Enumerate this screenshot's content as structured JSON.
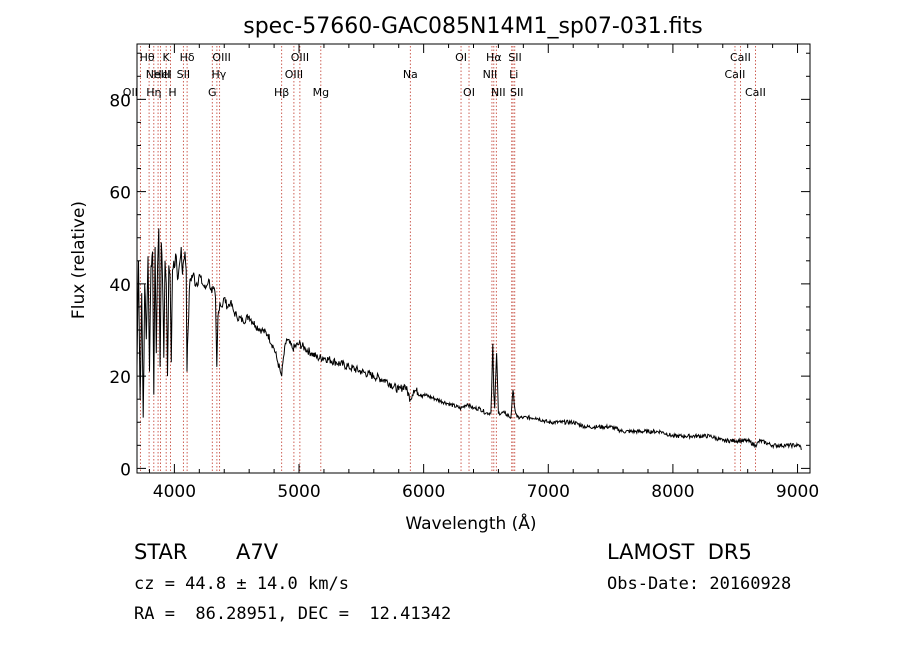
{
  "chart_data": {
    "type": "line",
    "title": "spec-57660-GAC085N14M1_sp07-031.fits",
    "xlabel": "Wavelength (Å)",
    "ylabel": "Flux (relative)",
    "xlim": [
      3700,
      9100
    ],
    "ylim": [
      -1,
      92
    ],
    "xticks": [
      4000,
      5000,
      6000,
      7000,
      8000,
      9000
    ],
    "yticks": [
      0,
      20,
      40,
      60,
      80
    ],
    "grid": false,
    "series": [
      {
        "color": "#000000",
        "x": [
          3700,
          3712,
          3725,
          3738,
          3750,
          3762,
          3775,
          3788,
          3800,
          3812,
          3825,
          3835,
          3845,
          3855,
          3865,
          3875,
          3885,
          3895,
          3905,
          3915,
          3925,
          3935,
          3945,
          3955,
          3965,
          3975,
          3985,
          3995,
          4005,
          4015,
          4025,
          4035,
          4045,
          4055,
          4065,
          4075,
          4085,
          4095,
          4101,
          4110,
          4125,
          4150,
          4175,
          4200,
          4225,
          4250,
          4275,
          4300,
          4315,
          4330,
          4340,
          4350,
          4365,
          4380,
          4400,
          4425,
          4450,
          4475,
          4500,
          4550,
          4600,
          4650,
          4700,
          4750,
          4800,
          4830,
          4850,
          4861,
          4875,
          4900,
          4950,
          5000,
          5050,
          5100,
          5150,
          5200,
          5300,
          5400,
          5500,
          5600,
          5700,
          5800,
          5850,
          5893,
          5920,
          6000,
          6100,
          6200,
          6300,
          6350,
          6400,
          6450,
          6500,
          6540,
          6555,
          6563,
          6570,
          6585,
          6600,
          6650,
          6700,
          6717,
          6731,
          6750,
          6800,
          6900,
          7000,
          7100,
          7200,
          7300,
          7400,
          7500,
          7600,
          7700,
          7800,
          7900,
          8000,
          8100,
          8200,
          8300,
          8400,
          8498,
          8542,
          8600,
          8662,
          8700,
          8800,
          8900,
          9000,
          9020,
          9030
        ],
        "values": [
          22,
          45,
          15,
          38,
          11,
          40,
          28,
          46,
          21,
          44,
          47,
          16,
          48,
          25,
          44,
          52,
          22,
          49,
          41,
          24,
          45,
          40,
          20,
          44,
          42,
          23,
          43,
          45,
          44,
          46,
          41,
          43,
          45,
          48,
          42,
          45,
          47,
          43,
          21,
          30,
          41,
          42,
          40,
          42,
          40,
          39,
          41,
          38,
          39,
          37,
          22,
          33,
          36,
          35,
          37,
          35,
          36,
          34,
          33,
          32,
          33,
          31,
          30,
          29,
          26,
          23,
          21,
          20,
          24,
          28,
          26,
          27,
          26,
          25,
          24,
          24,
          23,
          22,
          21,
          20,
          19,
          17,
          18,
          15,
          17,
          16,
          15,
          14,
          13,
          14,
          13,
          13,
          12,
          12,
          27,
          16,
          13,
          25,
          12,
          12,
          11,
          17,
          13,
          11,
          11,
          11,
          10,
          10,
          10,
          9,
          9,
          9,
          8,
          8,
          8,
          8,
          7,
          7,
          7,
          7,
          6,
          6,
          6,
          6,
          5,
          6,
          5,
          5,
          5,
          5,
          4
        ]
      }
    ],
    "lines": [
      {
        "wl": 3727,
        "label": "OII",
        "row": 3,
        "dx": -10
      },
      {
        "wl": 3797,
        "label": "Hθ",
        "row": 1,
        "dx": -2
      },
      {
        "wl": 3835,
        "label": "Hη",
        "row": 3,
        "dx": 0
      },
      {
        "wl": 3869,
        "label": "NeIII",
        "row": 2,
        "dx": 0
      },
      {
        "wl": 3889,
        "label": "HeI",
        "row": 2,
        "dx": 2
      },
      {
        "wl": 3934,
        "label": "K",
        "row": 1,
        "dx": 0
      },
      {
        "wl": 3969,
        "label": "H",
        "row": 3,
        "dx": 2
      },
      {
        "wl": 4072,
        "label": "SII",
        "row": 2,
        "dx": 0
      },
      {
        "wl": 4102,
        "label": "Hδ",
        "row": 1,
        "dx": 0
      },
      {
        "wl": 4304,
        "label": "G",
        "row": 3,
        "dx": 0
      },
      {
        "wl": 4341,
        "label": "Hγ",
        "row": 2,
        "dx": 2
      },
      {
        "wl": 4363,
        "label": "OIII",
        "row": 1,
        "dx": 2
      },
      {
        "wl": 4861,
        "label": "Hβ",
        "row": 3,
        "dx": 0
      },
      {
        "wl": 4959,
        "label": "OIII",
        "row": 2,
        "dx": 0
      },
      {
        "wl": 5007,
        "label": "OIII",
        "row": 1,
        "dx": 0
      },
      {
        "wl": 5175,
        "label": "Mg",
        "row": 3,
        "dx": 0
      },
      {
        "wl": 5893,
        "label": "Na",
        "row": 2,
        "dx": 0
      },
      {
        "wl": 6300,
        "label": "OI",
        "row": 1,
        "dx": 0
      },
      {
        "wl": 6364,
        "label": "OI",
        "row": 3,
        "dx": 0
      },
      {
        "wl": 6548,
        "label": "NII",
        "row": 2,
        "dx": -2
      },
      {
        "wl": 6563,
        "label": "Hα",
        "row": 1,
        "dx": 0
      },
      {
        "wl": 6583,
        "label": "NII",
        "row": 3,
        "dx": 2
      },
      {
        "wl": 6707,
        "label": "Li",
        "row": 2,
        "dx": 2
      },
      {
        "wl": 6717,
        "label": "SII",
        "row": 1,
        "dx": 2
      },
      {
        "wl": 6731,
        "label": "SII",
        "row": 3,
        "dx": 2
      },
      {
        "wl": 8498,
        "label": "CaII",
        "row": 2,
        "dx": 0
      },
      {
        "wl": 8542,
        "label": "CaII",
        "row": 1,
        "dx": 0
      },
      {
        "wl": 8662,
        "label": "CaII",
        "row": 3,
        "dx": 0
      }
    ]
  },
  "info": {
    "object_class": "STAR",
    "subclass": "A7V",
    "survey": "LAMOST  DR5",
    "cz": "cz = 44.8 ± 14.0 km/s",
    "obs_date": "Obs-Date: 20160928",
    "radec": "RA =  86.28951, DEC =  12.41342"
  },
  "colors": {
    "axes": "#000000",
    "spectrum": "#000000",
    "line_markers": "#c0392b"
  }
}
